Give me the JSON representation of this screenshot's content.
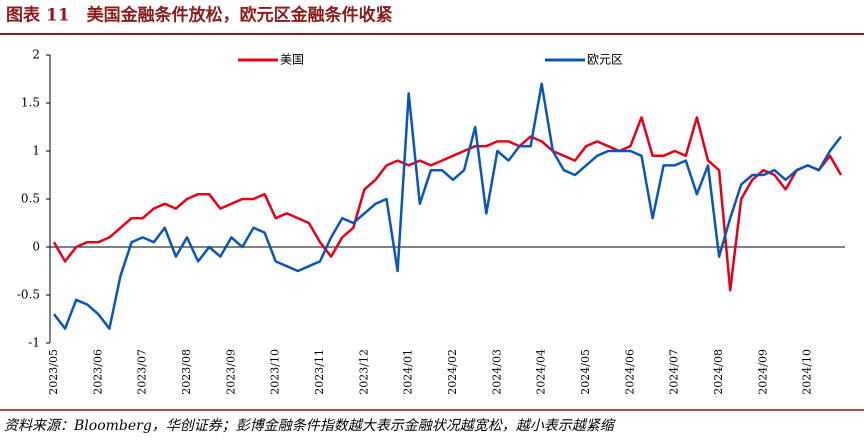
{
  "chart_data": {
    "type": "line",
    "title": "图表 11　美国金融条件放松，欧元区金融条件收紧",
    "source": "资料来源：Bloomberg，华创证券；彭博金融条件指数越大表示金融状况越宽松，越小表示越紧缩",
    "categories": [
      "2023/05",
      null,
      null,
      null,
      "2023/06",
      null,
      null,
      null,
      "2023/07",
      null,
      null,
      null,
      "2023/08",
      null,
      null,
      null,
      "2023/09",
      null,
      null,
      null,
      "2023/10",
      null,
      null,
      null,
      "2023/11",
      null,
      null,
      null,
      "2023/12",
      null,
      null,
      null,
      "2024/01",
      null,
      null,
      null,
      "2024/02",
      null,
      null,
      null,
      "2024/03",
      null,
      null,
      null,
      "2024/04",
      null,
      null,
      null,
      "2024/05",
      null,
      null,
      null,
      "2024/06",
      null,
      null,
      null,
      "2024/07",
      null,
      null,
      null,
      "2024/08",
      null,
      null,
      null,
      "2024/09",
      null,
      null,
      null,
      "2024/10",
      null,
      null,
      null
    ],
    "series": [
      {
        "name": "美国",
        "color": "#e2001a",
        "values": [
          0.05,
          -0.15,
          0.0,
          0.05,
          0.05,
          0.1,
          0.2,
          0.3,
          0.3,
          0.4,
          0.45,
          0.4,
          0.5,
          0.55,
          0.55,
          0.4,
          0.45,
          0.5,
          0.5,
          0.55,
          0.3,
          0.35,
          0.3,
          0.25,
          0.05,
          -0.1,
          0.1,
          0.2,
          0.6,
          0.7,
          0.85,
          0.9,
          0.85,
          0.9,
          0.85,
          0.9,
          0.95,
          1.0,
          1.05,
          1.05,
          1.1,
          1.1,
          1.05,
          1.15,
          1.1,
          1.0,
          0.95,
          0.9,
          1.05,
          1.1,
          1.05,
          1.0,
          1.05,
          1.35,
          0.95,
          0.95,
          1.0,
          0.95,
          1.35,
          0.9,
          0.8,
          -0.45,
          0.5,
          0.7,
          0.8,
          0.75,
          0.6,
          0.8,
          0.85,
          0.8,
          0.95,
          0.75
        ]
      },
      {
        "name": "欧元区",
        "color": "#0b55b5",
        "values": [
          -0.7,
          -0.85,
          -0.55,
          -0.6,
          -0.7,
          -0.85,
          -0.3,
          0.05,
          0.1,
          0.05,
          0.2,
          -0.1,
          0.1,
          -0.15,
          0.0,
          -0.1,
          0.1,
          0.0,
          0.2,
          0.15,
          -0.15,
          -0.2,
          -0.25,
          -0.2,
          -0.15,
          0.1,
          0.3,
          0.25,
          0.35,
          0.45,
          0.5,
          -0.25,
          1.6,
          0.45,
          0.8,
          0.8,
          0.7,
          0.8,
          1.25,
          0.35,
          1.0,
          0.9,
          1.05,
          1.05,
          1.7,
          1.0,
          0.8,
          0.75,
          0.85,
          0.95,
          1.0,
          1.0,
          1.0,
          0.95,
          0.3,
          0.85,
          0.85,
          0.9,
          0.55,
          0.85,
          -0.1,
          0.3,
          0.65,
          0.75,
          0.75,
          0.8,
          0.7,
          0.8,
          0.85,
          0.8,
          1.0,
          1.15
        ]
      }
    ],
    "ylim": [
      -1,
      2
    ],
    "yticks": [
      -1,
      -0.5,
      0,
      0.5,
      1,
      1.5,
      2
    ]
  }
}
